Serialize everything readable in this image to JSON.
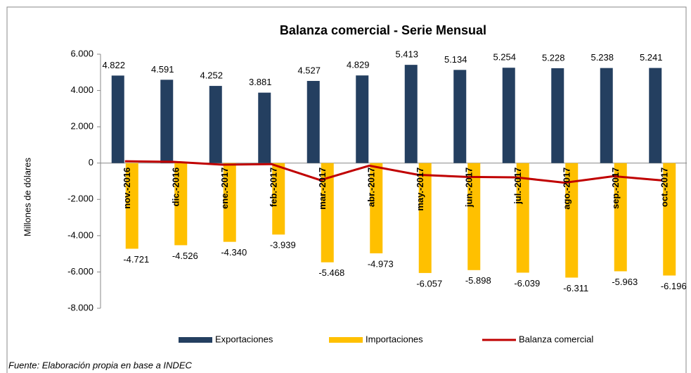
{
  "chart_data": {
    "type": "bar",
    "title": "Balanza comercial - Serie Mensual",
    "y_label": "Millones de dólares",
    "source": "Fuente: Elaboración propia  en base a INDEC",
    "categories": [
      "nov.-2016",
      "dic.-2016",
      "ene.-2017",
      "feb.-2017",
      "mar.-2017",
      "abr.-2017",
      "may.-2017",
      "jun.-2017",
      "jul.-2017",
      "ago.-2017",
      "sep.-2017",
      "oct.-2017"
    ],
    "series": [
      {
        "name": "Exportaciones",
        "type": "bar",
        "color": "#243f60",
        "values": [
          4822,
          4591,
          4252,
          3881,
          4527,
          4829,
          5413,
          5134,
          5254,
          5228,
          5238,
          5241
        ],
        "value_labels": [
          "4.822",
          "4.591",
          "4.252",
          "3.881",
          "4.527",
          "4.829",
          "5.413",
          "5.134",
          "5.254",
          "5.228",
          "5.238",
          "5.241"
        ]
      },
      {
        "name": "Importaciones",
        "type": "bar",
        "color": "#ffc000",
        "values": [
          -4721,
          -4526,
          -4340,
          -3939,
          -5468,
          -4973,
          -6057,
          -5898,
          -6039,
          -6311,
          -5963,
          -6196
        ],
        "value_labels": [
          "-4.721",
          "-4.526",
          "-4.340",
          "-3.939",
          "-5.468",
          "-4.973",
          "-6.057",
          "-5.898",
          "-6.039",
          "-6.311",
          "-5.963",
          "-6.196"
        ]
      },
      {
        "name": "Balanza comercial",
        "type": "line",
        "color": "#c00000",
        "values": [
          101,
          65,
          -88,
          -58,
          -941,
          -144,
          -644,
          -764,
          -785,
          -1083,
          -725,
          -955
        ]
      }
    ],
    "ylim": [
      -8000,
      6000
    ],
    "yticks": [
      {
        "value": -8000,
        "label": "-8.000"
      },
      {
        "value": -6000,
        "label": "-6.000"
      },
      {
        "value": -4000,
        "label": "-4.000"
      },
      {
        "value": -2000,
        "label": "-2.000"
      },
      0,
      {
        "value": 2000,
        "label": "2.000"
      },
      {
        "value": 4000,
        "label": "4.000"
      },
      {
        "value": 6000,
        "label": "6.000"
      }
    ],
    "grid": false,
    "legend": "bottom"
  }
}
